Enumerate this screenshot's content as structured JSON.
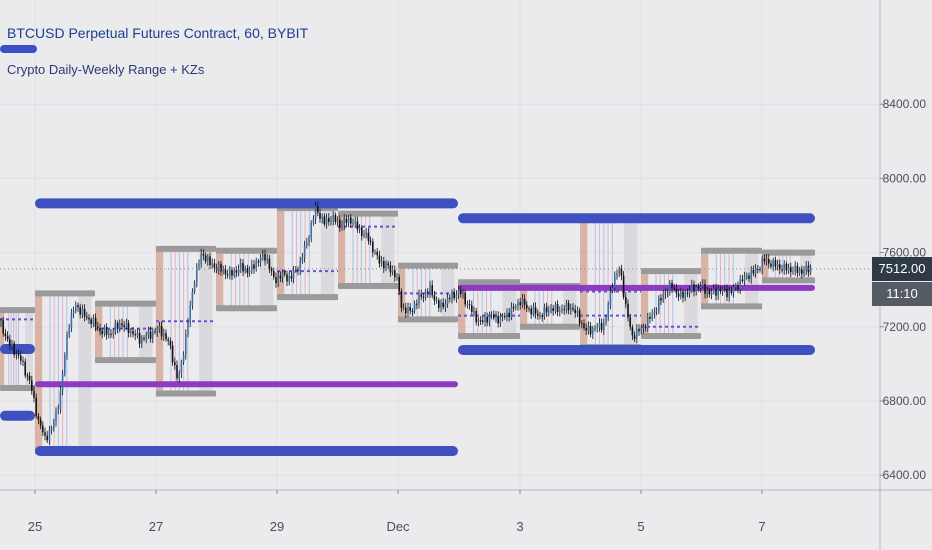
{
  "header": {
    "title": "BTCUSD Perpetual Futures Contract, 60, BYBIT",
    "indicator": "Crypto Daily-Weekly Range + KZs"
  },
  "colors": {
    "background": "#ebebee",
    "weekly_range": "#3f51c0",
    "daily_mid": "#8e3bc4",
    "box_gray": "#9a9a9a",
    "candle": "#111111",
    "last_price_badge": "#2e3a46"
  },
  "price_badges": {
    "last_price": "7512.00",
    "countdown": "11:10"
  },
  "chart_data": {
    "type": "candlestick",
    "symbol": "BTCUSD",
    "interval": "60",
    "exchange": "BYBIT",
    "ylim": [
      6320,
      8800
    ],
    "x_domain": [
      0,
      880
    ],
    "y_ticks": [
      {
        "value": 6400,
        "label": "6400.00"
      },
      {
        "value": 6800,
        "label": "6800.00"
      },
      {
        "value": 7200,
        "label": "7200.00"
      },
      {
        "value": 7600,
        "label": "7600.00"
      },
      {
        "value": 8000,
        "label": "8000.00"
      },
      {
        "value": 8400,
        "label": "8400.00"
      }
    ],
    "x_ticks": [
      {
        "x": 35,
        "label": "25"
      },
      {
        "x": 156,
        "label": "27"
      },
      {
        "x": 277,
        "label": "29"
      },
      {
        "x": 398,
        "label": "Dec"
      },
      {
        "x": 520,
        "label": "3"
      },
      {
        "x": 641,
        "label": "5"
      },
      {
        "x": 762,
        "label": "7"
      }
    ],
    "last_price": 7512,
    "weekly_ranges": [
      {
        "x0": 0,
        "x1": 35,
        "high": 7080,
        "low": 6720
      },
      {
        "x0": 35,
        "x1": 458,
        "high": 7865,
        "low": 6530
      },
      {
        "x0": 458,
        "x1": 815,
        "high": 7785,
        "low": 7075
      }
    ],
    "weekly_mids": [
      {
        "x0": 35,
        "x1": 458,
        "value": 6890
      },
      {
        "x0": 458,
        "x1": 815,
        "value": 7410
      }
    ],
    "daily_boxes": [
      {
        "x0": 0,
        "x1": 35,
        "high": 7290,
        "low": 6870
      },
      {
        "x0": 35,
        "x1": 95,
        "high": 7380,
        "low": 6530
      },
      {
        "x0": 95,
        "x1": 156,
        "high": 7325,
        "low": 7020
      },
      {
        "x0": 156,
        "x1": 216,
        "high": 7620,
        "low": 6840
      },
      {
        "x0": 216,
        "x1": 277,
        "high": 7610,
        "low": 7300
      },
      {
        "x0": 277,
        "x1": 338,
        "high": 7840,
        "low": 7360
      },
      {
        "x0": 338,
        "x1": 398,
        "high": 7810,
        "low": 7420
      },
      {
        "x0": 398,
        "x1": 458,
        "high": 7530,
        "low": 7240
      },
      {
        "x0": 458,
        "x1": 520,
        "high": 7440,
        "low": 7150
      },
      {
        "x0": 520,
        "x1": 580,
        "high": 7420,
        "low": 7200
      },
      {
        "x0": 580,
        "x1": 641,
        "high": 7790,
        "low": 7090
      },
      {
        "x0": 641,
        "x1": 701,
        "high": 7500,
        "low": 7150
      },
      {
        "x0": 701,
        "x1": 762,
        "high": 7610,
        "low": 7310
      },
      {
        "x0": 762,
        "x1": 815,
        "high": 7600,
        "low": 7450
      }
    ],
    "daily_mids": [
      {
        "x0": 0,
        "x1": 35,
        "value": 7240
      },
      {
        "x0": 95,
        "x1": 156,
        "value": 7190
      },
      {
        "x0": 156,
        "x1": 216,
        "value": 7230
      },
      {
        "x0": 277,
        "x1": 338,
        "value": 7500
      },
      {
        "x0": 338,
        "x1": 398,
        "value": 7740
      },
      {
        "x0": 398,
        "x1": 458,
        "value": 7380
      },
      {
        "x0": 458,
        "x1": 520,
        "value": 7260
      },
      {
        "x0": 580,
        "x1": 641,
        "value": 7390
      },
      {
        "x0": 580,
        "x1": 641,
        "value": 7260
      },
      {
        "x0": 641,
        "x1": 701,
        "value": 7200
      }
    ],
    "price_path": [
      [
        0,
        7220
      ],
      [
        10,
        7100
      ],
      [
        20,
        7030
      ],
      [
        30,
        6900
      ],
      [
        38,
        6700
      ],
      [
        45,
        6600
      ],
      [
        52,
        6650
      ],
      [
        60,
        6820
      ],
      [
        68,
        7200
      ],
      [
        76,
        7320
      ],
      [
        84,
        7260
      ],
      [
        92,
        7230
      ],
      [
        100,
        7180
      ],
      [
        110,
        7160
      ],
      [
        120,
        7220
      ],
      [
        130,
        7180
      ],
      [
        140,
        7130
      ],
      [
        150,
        7160
      ],
      [
        160,
        7190
      ],
      [
        170,
        7100
      ],
      [
        178,
        6900
      ],
      [
        186,
        7150
      ],
      [
        194,
        7450
      ],
      [
        202,
        7600
      ],
      [
        210,
        7540
      ],
      [
        220,
        7510
      ],
      [
        230,
        7480
      ],
      [
        240,
        7520
      ],
      [
        250,
        7500
      ],
      [
        258,
        7560
      ],
      [
        266,
        7580
      ],
      [
        274,
        7450
      ],
      [
        282,
        7480
      ],
      [
        290,
        7460
      ],
      [
        300,
        7540
      ],
      [
        308,
        7680
      ],
      [
        316,
        7840
      ],
      [
        324,
        7760
      ],
      [
        332,
        7790
      ],
      [
        340,
        7750
      ],
      [
        350,
        7780
      ],
      [
        360,
        7720
      ],
      [
        368,
        7680
      ],
      [
        378,
        7560
      ],
      [
        388,
        7520
      ],
      [
        396,
        7480
      ],
      [
        402,
        7300
      ],
      [
        410,
        7280
      ],
      [
        420,
        7360
      ],
      [
        430,
        7400
      ],
      [
        440,
        7300
      ],
      [
        450,
        7360
      ],
      [
        460,
        7390
      ],
      [
        470,
        7300
      ],
      [
        480,
        7220
      ],
      [
        490,
        7260
      ],
      [
        500,
        7240
      ],
      [
        510,
        7280
      ],
      [
        520,
        7340
      ],
      [
        530,
        7290
      ],
      [
        540,
        7260
      ],
      [
        550,
        7300
      ],
      [
        560,
        7290
      ],
      [
        570,
        7310
      ],
      [
        578,
        7260
      ],
      [
        585,
        7180
      ],
      [
        595,
        7190
      ],
      [
        605,
        7220
      ],
      [
        612,
        7430
      ],
      [
        620,
        7520
      ],
      [
        626,
        7300
      ],
      [
        632,
        7150
      ],
      [
        640,
        7180
      ],
      [
        648,
        7230
      ],
      [
        656,
        7300
      ],
      [
        664,
        7380
      ],
      [
        672,
        7420
      ],
      [
        680,
        7360
      ],
      [
        690,
        7400
      ],
      [
        700,
        7420
      ],
      [
        710,
        7380
      ],
      [
        720,
        7400
      ],
      [
        730,
        7380
      ],
      [
        740,
        7440
      ],
      [
        748,
        7480
      ],
      [
        756,
        7500
      ],
      [
        764,
        7560
      ],
      [
        772,
        7540
      ],
      [
        780,
        7520
      ],
      [
        790,
        7510
      ],
      [
        800,
        7500
      ],
      [
        812,
        7512
      ]
    ]
  }
}
